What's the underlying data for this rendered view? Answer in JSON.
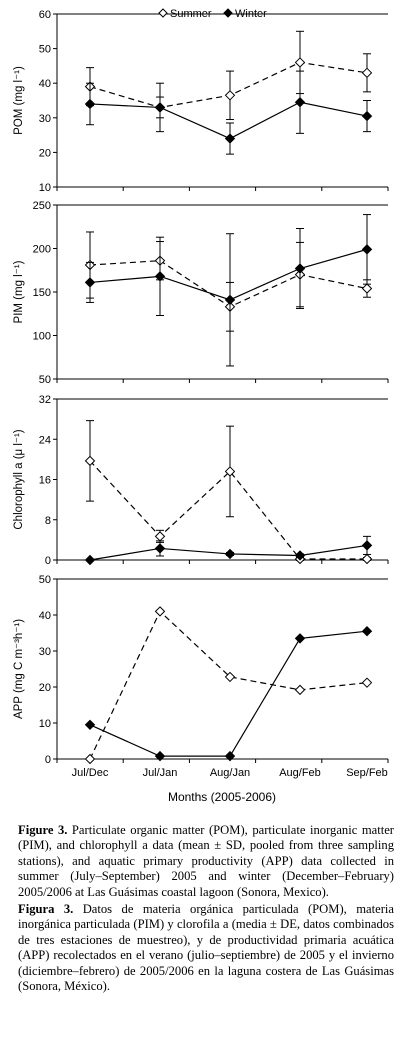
{
  "legend": [
    {
      "name": "Summer",
      "marker": "open-diamond",
      "line": "dashed"
    },
    {
      "name": "Winter",
      "marker": "filled-diamond",
      "line": "solid"
    }
  ],
  "xlabel": "Months (2005-2006)",
  "chart_data": [
    {
      "type": "line",
      "ylabel": "POM (mg l⁻¹)",
      "categories": [
        "Jul/Dec",
        "Jul/Jan",
        "Aug/Jan",
        "Aug/Feb",
        "Sep/Feb"
      ],
      "ylim": [
        10,
        60
      ],
      "yticks": [
        10,
        20,
        30,
        40,
        50,
        60
      ],
      "series": [
        {
          "name": "Summer",
          "values": [
            39,
            33,
            36.5,
            46,
            43
          ],
          "err": [
            5.5,
            3,
            7,
            9,
            5.5
          ]
        },
        {
          "name": "Winter",
          "values": [
            34,
            33,
            24,
            34.5,
            30.5
          ],
          "err": [
            6,
            7,
            4.5,
            9,
            4.5
          ]
        }
      ]
    },
    {
      "type": "line",
      "ylabel": "PIM (mg l⁻¹)",
      "categories": [
        "Jul/Dec",
        "Jul/Jan",
        "Aug/Jan",
        "Aug/Feb",
        "Sep/Feb"
      ],
      "ylim": [
        50,
        250
      ],
      "yticks": [
        50,
        100,
        150,
        200,
        250
      ],
      "series": [
        {
          "name": "Summer",
          "values": [
            181,
            186,
            133,
            170,
            154
          ],
          "err": [
            38,
            22,
            28,
            37,
            10
          ]
        },
        {
          "name": "Winter",
          "values": [
            161,
            168,
            141,
            177,
            199
          ],
          "err": [
            23,
            45,
            76,
            46,
            40
          ]
        }
      ]
    },
    {
      "type": "line",
      "ylabel": "Chlorophyll a (μ l⁻¹)",
      "categories": [
        "Jul/Dec",
        "Jul/Jan",
        "Aug/Jan",
        "Aug/Feb",
        "Sep/Feb"
      ],
      "ylim": [
        0,
        32
      ],
      "yticks": [
        0,
        8,
        16,
        24,
        32
      ],
      "series": [
        {
          "name": "Summer",
          "values": [
            19.7,
            4.7,
            17.6,
            0.2,
            0.2
          ],
          "err": [
            8,
            1.2,
            9,
            0.3,
            0.3
          ]
        },
        {
          "name": "Winter",
          "values": [
            0,
            2.3,
            1.2,
            0.9,
            2.9
          ],
          "err": [
            0,
            1.5,
            0.3,
            0.3,
            1.8
          ]
        }
      ]
    },
    {
      "type": "line",
      "ylabel": "APP  (mg C m⁻³h⁻¹)",
      "categories": [
        "Jul/Dec",
        "Jul/Jan",
        "Aug/Jan",
        "Aug/Feb",
        "Sep/Feb"
      ],
      "ylim": [
        0,
        50
      ],
      "yticks": [
        0,
        10,
        20,
        30,
        40,
        50
      ],
      "series": [
        {
          "name": "Summer",
          "values": [
            0,
            41,
            22.8,
            19.2,
            21.2
          ]
        },
        {
          "name": "Winter",
          "values": [
            9.5,
            0.8,
            0.8,
            33.5,
            35.5
          ]
        }
      ]
    }
  ],
  "caption": {
    "en_label": "Figure 3.",
    "en_text": " Particulate organic matter (POM), particulate inorganic matter (PIM), and chlorophyll a data (mean ± SD, pooled from three sampling stations), and aquatic primary productivity (APP) data collected in summer (July–September) 2005 and winter (December–February) 2005/2006 at Las Guásimas coastal lagoon (Sonora, Mexico).",
    "es_label": "Figura 3.",
    "es_text": " Datos de materia orgánica particulada (POM), materia inorgánica particulada (PIM) y clorofila a (media ± DE, datos combinados de tres estaciones de muestreo), y de productividad primaria acuática (APP) recolectados en el verano (julio–septiembre) de 2005 y el invierno (diciembre–febrero) de 2005/2006 en la laguna costera de Las Guásimas (Sonora, México)."
  }
}
